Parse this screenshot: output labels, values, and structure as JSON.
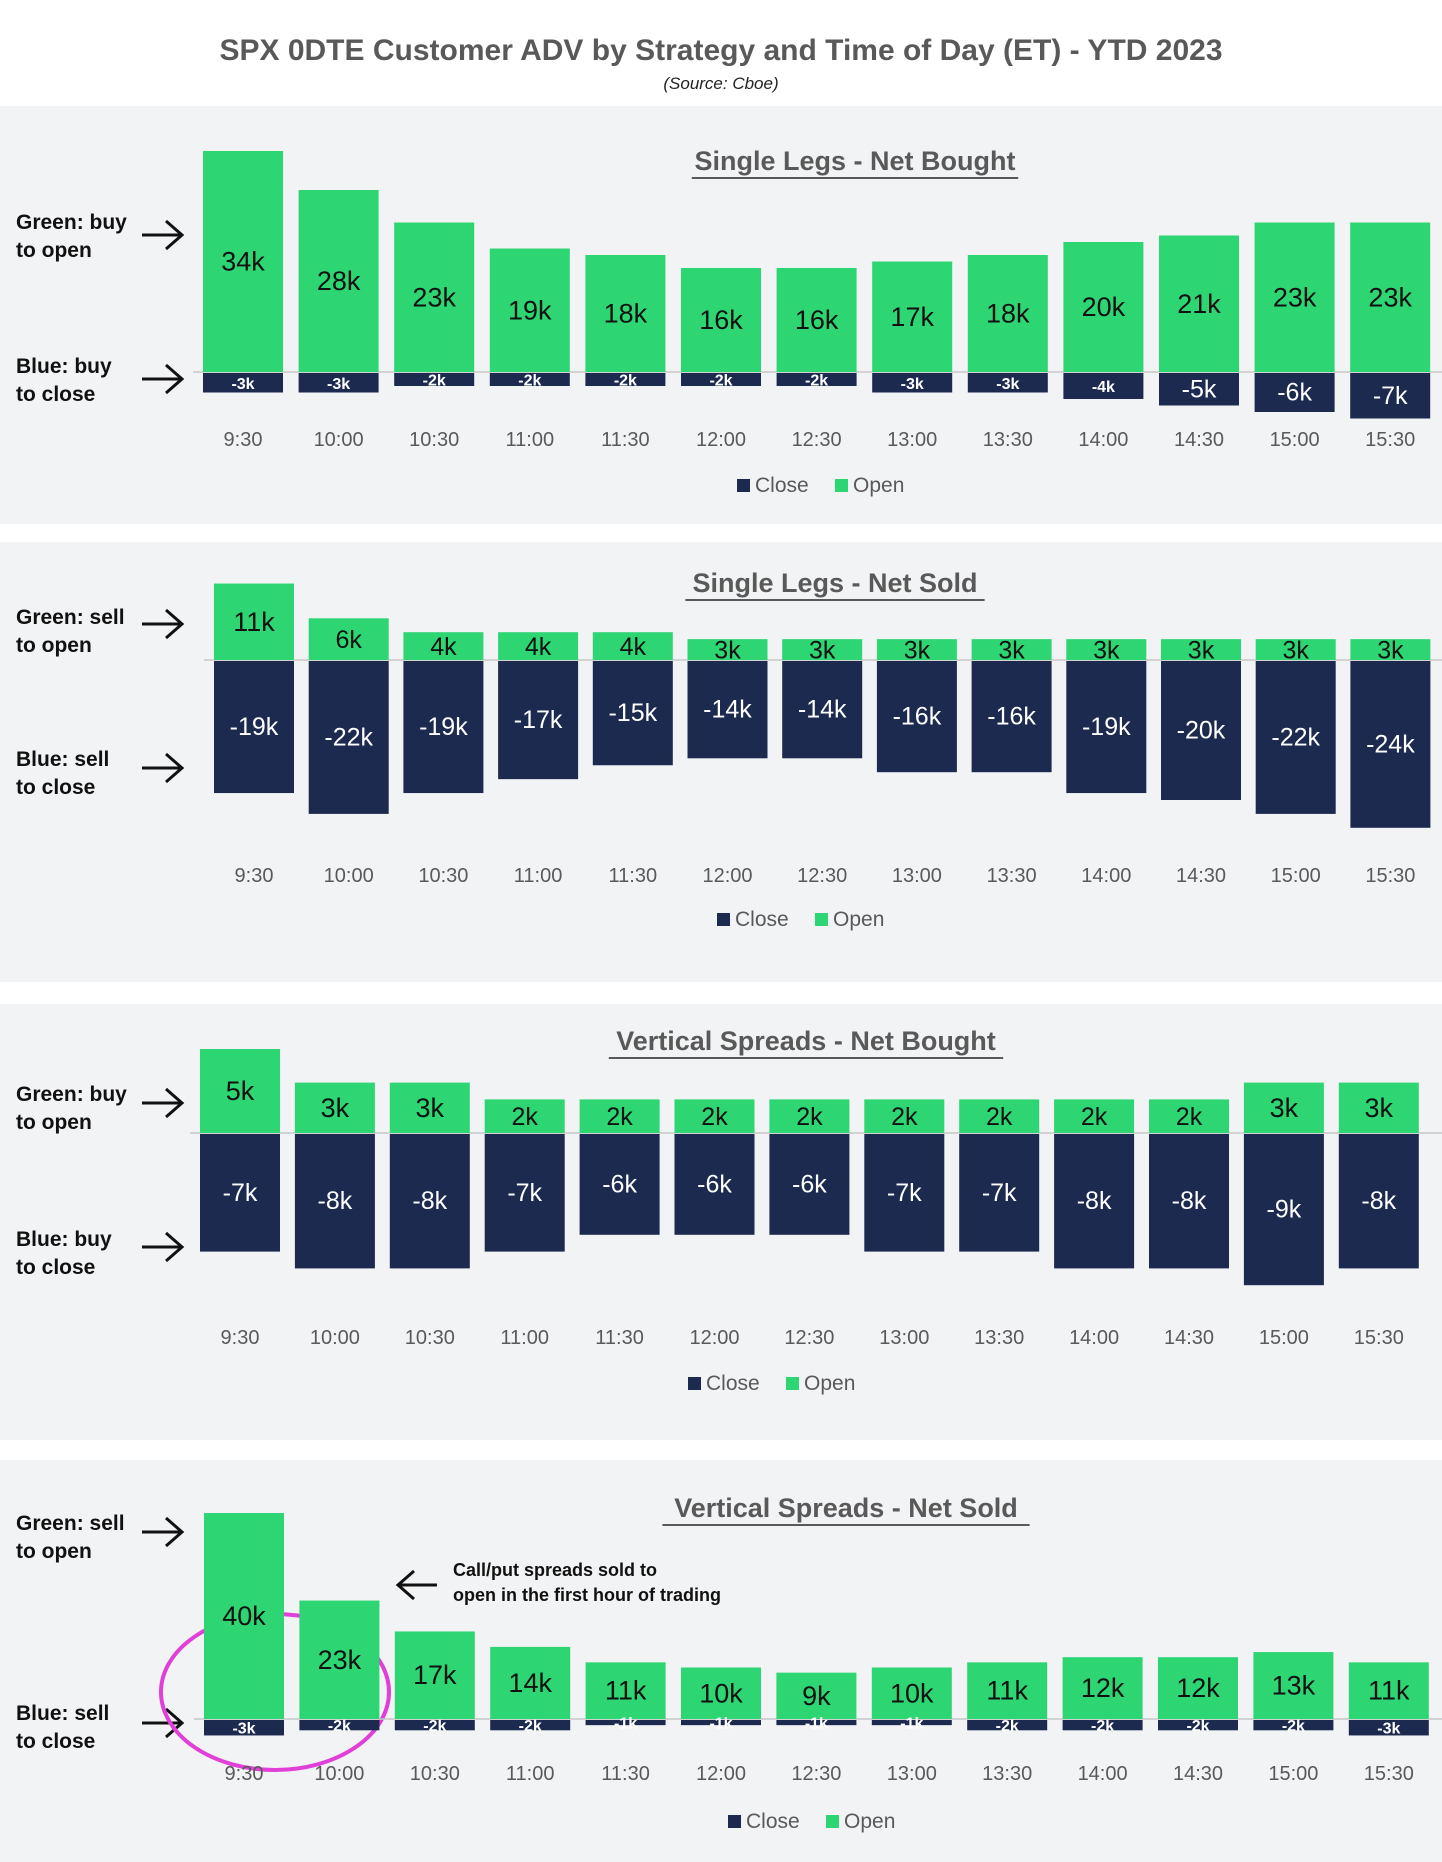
{
  "title": "SPX 0DTE Customer ADV by Strategy and Time of Day (ET) - YTD 2023",
  "source": "(Source: Cboe)",
  "colors": {
    "open": "#2ed573",
    "close": "#1c2a50",
    "panel_bg": "#f2f3f5",
    "annotation": "#e040d8"
  },
  "annotation": {
    "line1": "Call/put spreads sold to",
    "line2": "open in the first hour of trading"
  },
  "chart_data": [
    {
      "type": "bar",
      "title": "Single Legs - Net Bought",
      "categories": [
        "9:30",
        "10:00",
        "10:30",
        "11:00",
        "11:30",
        "12:00",
        "12:30",
        "13:00",
        "13:30",
        "14:00",
        "14:30",
        "15:00",
        "15:30"
      ],
      "series": [
        {
          "name": "Close",
          "values": [
            -3,
            -3,
            -2,
            -2,
            -2,
            -2,
            -2,
            -3,
            -3,
            -4,
            -5,
            -6,
            -7
          ],
          "labels": [
            "-3k",
            "-3k",
            "-2k",
            "-2k",
            "-2k",
            "-2k",
            "-2k",
            "-3k",
            "-3k",
            "-4k",
            "-5k",
            "-6k",
            "-7k"
          ]
        },
        {
          "name": "Open",
          "values": [
            34,
            28,
            23,
            19,
            18,
            16,
            16,
            17,
            18,
            20,
            21,
            23,
            23
          ],
          "labels": [
            "34k",
            "28k",
            "23k",
            "19k",
            "18k",
            "16k",
            "16k",
            "17k",
            "18k",
            "20k",
            "21k",
            "23k",
            "23k"
          ]
        }
      ],
      "legend": [
        "Close",
        "Open"
      ],
      "side_labels": {
        "top": [
          "Green: buy",
          "to open"
        ],
        "bottom": [
          "Blue: buy",
          "to close"
        ]
      },
      "unit": "k"
    },
    {
      "type": "bar",
      "title": "Single Legs - Net Sold",
      "categories": [
        "9:30",
        "10:00",
        "10:30",
        "11:00",
        "11:30",
        "12:00",
        "12:30",
        "13:00",
        "13:30",
        "14:00",
        "14:30",
        "15:00",
        "15:30"
      ],
      "series": [
        {
          "name": "Close",
          "values": [
            -19,
            -22,
            -19,
            -17,
            -15,
            -14,
            -14,
            -16,
            -16,
            -19,
            -20,
            -22,
            -24
          ],
          "labels": [
            "-19k",
            "-22k",
            "-19k",
            "-17k",
            "-15k",
            "-14k",
            "-14k",
            "-16k",
            "-16k",
            "-19k",
            "-20k",
            "-22k",
            "-24k"
          ]
        },
        {
          "name": "Open",
          "values": [
            11,
            6,
            4,
            4,
            4,
            3,
            3,
            3,
            3,
            3,
            3,
            3,
            3
          ],
          "labels": [
            "11k",
            "6k",
            "4k",
            "4k",
            "4k",
            "3k",
            "3k",
            "3k",
            "3k",
            "3k",
            "3k",
            "3k",
            "3k"
          ]
        }
      ],
      "legend": [
        "Close",
        "Open"
      ],
      "side_labels": {
        "top": [
          "Green: sell",
          "to open"
        ],
        "bottom": [
          "Blue: sell",
          "to close"
        ]
      },
      "unit": "k"
    },
    {
      "type": "bar",
      "title": "Vertical Spreads - Net Bought",
      "categories": [
        "9:30",
        "10:00",
        "10:30",
        "11:00",
        "11:30",
        "12:00",
        "12:30",
        "13:00",
        "13:30",
        "14:00",
        "14:30",
        "15:00",
        "15:30"
      ],
      "series": [
        {
          "name": "Close",
          "values": [
            -7,
            -8,
            -8,
            -7,
            -6,
            -6,
            -6,
            -7,
            -7,
            -8,
            -8,
            -9,
            -8
          ],
          "labels": [
            "-7k",
            "-8k",
            "-8k",
            "-7k",
            "-6k",
            "-6k",
            "-6k",
            "-7k",
            "-7k",
            "-8k",
            "-8k",
            "-9k",
            "-8k"
          ]
        },
        {
          "name": "Open",
          "values": [
            5,
            3,
            3,
            2,
            2,
            2,
            2,
            2,
            2,
            2,
            2,
            3,
            3
          ],
          "labels": [
            "5k",
            "3k",
            "3k",
            "2k",
            "2k",
            "2k",
            "2k",
            "2k",
            "2k",
            "2k",
            "2k",
            "3k",
            "3k"
          ]
        }
      ],
      "legend": [
        "Close",
        "Open"
      ],
      "side_labels": {
        "top": [
          "Green: buy",
          "to open"
        ],
        "bottom": [
          "Blue: buy",
          "to close"
        ]
      },
      "unit": "k"
    },
    {
      "type": "bar",
      "title": "Vertical Spreads - Net Sold",
      "categories": [
        "9:30",
        "10:00",
        "10:30",
        "11:00",
        "11:30",
        "12:00",
        "12:30",
        "13:00",
        "13:30",
        "14:00",
        "14:30",
        "15:00",
        "15:30"
      ],
      "series": [
        {
          "name": "Close",
          "values": [
            -3,
            -2,
            -2,
            -2,
            -1,
            -1,
            -1,
            -1,
            -2,
            -2,
            -2,
            -2,
            -3
          ],
          "labels": [
            "-3k",
            "-2k",
            "-2k",
            "-2k",
            "-1k",
            "-1k",
            "-1k",
            "-1k",
            "-2k",
            "-2k",
            "-2k",
            "-2k",
            "-3k"
          ]
        },
        {
          "name": "Open",
          "values": [
            40,
            23,
            17,
            14,
            11,
            10,
            9,
            10,
            11,
            12,
            12,
            13,
            11
          ],
          "labels": [
            "40k",
            "23k",
            "17k",
            "14k",
            "11k",
            "10k",
            "9k",
            "10k",
            "11k",
            "12k",
            "12k",
            "13k",
            "11k"
          ]
        }
      ],
      "legend": [
        "Close",
        "Open"
      ],
      "side_labels": {
        "top": [
          "Green: sell",
          "to open"
        ],
        "bottom": [
          "Blue: sell",
          "to close"
        ]
      },
      "unit": "k"
    }
  ]
}
